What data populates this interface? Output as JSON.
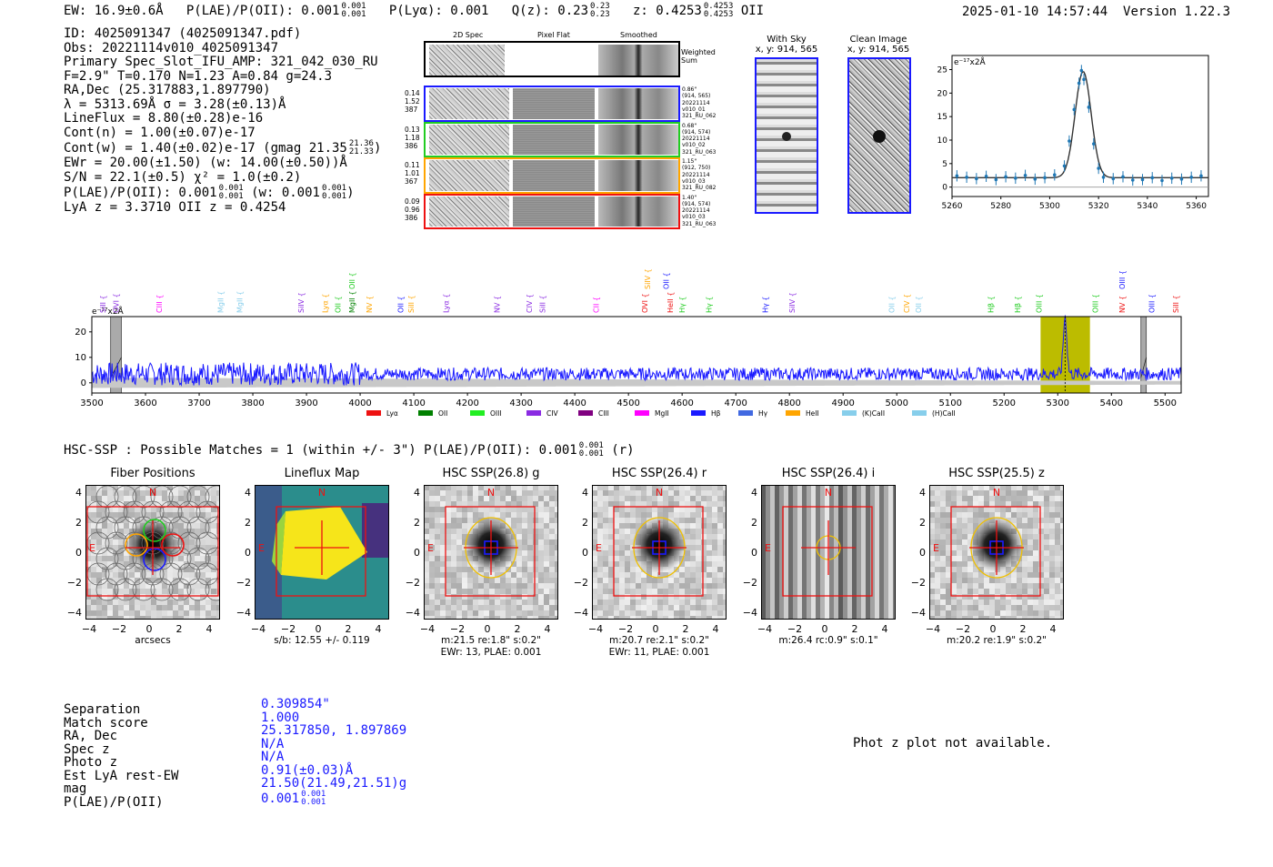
{
  "header": {
    "ew": "EW: 16.9±0.6Å",
    "plae": "P(LAE)/P(OII): 0.001",
    "plae_sup": "0.001",
    "plae_sub": "0.001",
    "plya": "P(Lyα): 0.001",
    "qz": "Q(z): 0.23",
    "qz_sup": "0.23",
    "qz_sub": "0.23",
    "z": "z: 0.4253",
    "z_sup": "0.4253",
    "z_sub": "0.4253",
    "line": "OII",
    "datetime": "2025-01-10 14:57:44",
    "version": "Version 1.22.3"
  },
  "info": {
    "id": "ID: 4025091347 (4025091347.pdf)",
    "obs": "Obs: 20221114v010_4025091347",
    "primary": "Primary Spec_Slot_IFU_AMP: 321_042_030_RU",
    "fwhm": "F=2.9\"  T=0.170  N=1.23  A=0.84  g=24.3",
    "radec": "RA,Dec (25.317883,1.897790)",
    "lambda": "λ = 5313.69Å  σ = 3.28(±0.13)Å",
    "lineflux": "LineFlux = 8.80(±0.28)e-16",
    "contn": "Cont(n) = 1.00(±0.07)e-17",
    "contw": "Cont(w) = 1.40(±0.02)e-17 (gmag 21.35",
    "contw_sup": "21.36",
    "contw_sub": "21.33",
    "contw_end": ")",
    "ewr": "EWr = 20.00(±1.50) (w: 14.00(±0.50))Å",
    "sn": "S/N = 22.1(±0.5)  χ² = 1.0(±0.2)",
    "plae": "P(LAE)/P(OII): 0.001",
    "plae_sup": "0.001",
    "plae_sub": "0.001",
    "plae_w": "(w: 0.001",
    "plae_w_sup": "0.001",
    "plae_w_sub": "0.001",
    "plae_w_end": ")",
    "lyaz": "LyA z = 3.3710  OII z = 0.4254"
  },
  "cutouts": {
    "col_titles": [
      "2D Spec",
      "Pixel Flat",
      "Smoothed"
    ],
    "weighted_label": "Weighted Sum",
    "rows": [
      {
        "left": [
          "0.14",
          "1.52",
          "387"
        ],
        "right": [
          "0.86\"",
          "(914, 565)",
          "20221114",
          "v010_01",
          "321_RU_062"
        ],
        "color": "#1a1aff"
      },
      {
        "left": [
          "0.13",
          "1.18",
          "386"
        ],
        "right": [
          "0.68\"",
          "(914, 574)",
          "20221114",
          "v010_02",
          "321_RU_063"
        ],
        "color": "#22cc22"
      },
      {
        "left": [
          "0.11",
          "1.01",
          "367"
        ],
        "right": [
          "1.15\"",
          "(912, 750)",
          "20221114",
          "v010_03",
          "321_RU_082"
        ],
        "color": "#ffa500"
      },
      {
        "left": [
          "0.09",
          "0.96",
          "386"
        ],
        "right": [
          "1.40\"",
          "(914, 574)",
          "20221114",
          "v010_03",
          "321_RU_063"
        ],
        "color": "#ee1111"
      }
    ]
  },
  "sky": {
    "with_sky": "With Sky",
    "with_sky_xy": "x, y: 914, 565",
    "clean": "Clean Image",
    "clean_xy": "x, y: 914, 565"
  },
  "zoom_chart_data": {
    "type": "line",
    "title": "",
    "ylabel_unit": "e⁻¹⁷x2Å",
    "x": [
      5262,
      5266,
      5270,
      5274,
      5278,
      5282,
      5286,
      5290,
      5294,
      5298,
      5302,
      5306,
      5308,
      5310,
      5312,
      5313,
      5314,
      5316,
      5318,
      5320,
      5322,
      5326,
      5330,
      5334,
      5338,
      5342,
      5346,
      5350,
      5354,
      5358,
      5362
    ],
    "y": [
      2.4,
      2.1,
      1.8,
      2.3,
      1.6,
      2.2,
      1.9,
      2.5,
      1.7,
      2.0,
      2.6,
      4.5,
      9.8,
      16.5,
      22.1,
      24.8,
      22.9,
      17.0,
      9.2,
      4.0,
      2.1,
      1.8,
      2.2,
      1.5,
      1.6,
      2.0,
      1.4,
      1.9,
      1.7,
      2.1,
      2.4
    ],
    "xlim": [
      5260,
      5365
    ],
    "ylim": [
      -2,
      28
    ],
    "xticks": [
      5260,
      5280,
      5300,
      5320,
      5340,
      5360
    ],
    "yticks": [
      0,
      5,
      10,
      15,
      20,
      25
    ]
  },
  "chart_data": {
    "type": "line",
    "ylabel_unit": "e⁻¹⁷x2Å",
    "xlim": [
      3500,
      5530
    ],
    "ylim": [
      -4,
      26
    ],
    "xticks": [
      3500,
      3600,
      3700,
      3800,
      3900,
      4000,
      4100,
      4200,
      4300,
      4400,
      4500,
      4600,
      4700,
      4800,
      4900,
      5000,
      5100,
      5200,
      5300,
      5400,
      5500
    ],
    "yticks": [
      0,
      10,
      20
    ],
    "peak": {
      "x": 5313.69,
      "y": 26
    },
    "highlight_range": [
      5268,
      5360
    ],
    "gray_bands": [
      [
        3535,
        3555
      ],
      [
        5455,
        5465
      ]
    ],
    "line_labels": [
      {
        "x": 3520,
        "label": "SiII",
        "color": "#8a2be2"
      },
      {
        "x": 3545,
        "label": "OVI",
        "color": "#8a2be2"
      },
      {
        "x": 3625,
        "label": "CIII",
        "color": "#ff00ff"
      },
      {
        "x": 3740,
        "label": "MgII",
        "color": "#87ceeb"
      },
      {
        "x": 3775,
        "label": "MgII",
        "color": "#87ceeb"
      },
      {
        "x": 3890,
        "label": "SiIV",
        "color": "#8a2be2"
      },
      {
        "x": 3935,
        "label": "Lyα",
        "color": "#ffa500"
      },
      {
        "x": 3958,
        "label": "OII",
        "color": "#22cc22"
      },
      {
        "x": 3985,
        "label": "MgII",
        "color": "#008000"
      },
      {
        "x": 4017,
        "label": "NV",
        "color": "#ffa500"
      },
      {
        "x": 4075,
        "label": "OII",
        "color": "#1a1aff"
      },
      {
        "x": 4095,
        "label": "SiII",
        "color": "#ffa500"
      },
      {
        "x": 4160,
        "label": "Lyα",
        "color": "#8a2be2"
      },
      {
        "x": 4255,
        "label": "NV",
        "color": "#8a2be2"
      },
      {
        "x": 4315,
        "label": "CIV",
        "color": "#8a2be2"
      },
      {
        "x": 4340,
        "label": "SiII",
        "color": "#8a2be2"
      },
      {
        "x": 4440,
        "label": "CII",
        "color": "#ff00ff"
      },
      {
        "x": 4530,
        "label": "OVI",
        "color": "#ee1111"
      },
      {
        "x": 4578,
        "label": "HeII",
        "color": "#ee1111"
      },
      {
        "x": 4600,
        "label": "Hγ",
        "color": "#22cc22"
      },
      {
        "x": 4650,
        "label": "Hγ",
        "color": "#22cc22"
      },
      {
        "x": 4755,
        "label": "Hγ",
        "color": "#1a1aff"
      },
      {
        "x": 4805,
        "label": "SiIV",
        "color": "#8a2be2"
      },
      {
        "x": 4990,
        "label": "OII",
        "color": "#87ceeb"
      },
      {
        "x": 5018,
        "label": "CIV",
        "color": "#ffa500"
      },
      {
        "x": 5040,
        "label": "OII",
        "color": "#87ceeb"
      },
      {
        "x": 5175,
        "label": "Hβ",
        "color": "#22cc22"
      },
      {
        "x": 5225,
        "label": "Hβ",
        "color": "#22cc22"
      },
      {
        "x": 5265,
        "label": "OIII",
        "color": "#22cc22"
      },
      {
        "x": 5370,
        "label": "OIII",
        "color": "#22cc22"
      },
      {
        "x": 5420,
        "label": "NV",
        "color": "#ee1111"
      },
      {
        "x": 5475,
        "label": "OIII",
        "color": "#1a1aff"
      },
      {
        "x": 5520,
        "label": "SiII",
        "color": "#ee1111"
      }
    ],
    "upper_labels": [
      {
        "x": 3985,
        "label": "OII",
        "color": "#22cc22"
      },
      {
        "x": 4535,
        "label": "SiIV",
        "color": "#ffa500"
      },
      {
        "x": 4570,
        "label": "OII",
        "color": "#1a1aff"
      },
      {
        "x": 5420,
        "label": "OIII",
        "color": "#1a1aff"
      }
    ],
    "legend": [
      {
        "label": "Lyα",
        "color": "#ee1111"
      },
      {
        "label": "OII",
        "color": "#008000"
      },
      {
        "label": "OIII",
        "color": "#22ee22"
      },
      {
        "label": "CIV",
        "color": "#8a2be2"
      },
      {
        "label": "CIII",
        "color": "#800080"
      },
      {
        "label": "MgII",
        "color": "#ff00ff"
      },
      {
        "label": "Hβ",
        "color": "#1a1aff"
      },
      {
        "label": "Hγ",
        "color": "#4169e1"
      },
      {
        "label": "HeII",
        "color": "#ffa500"
      },
      {
        "label": "(K)CaII",
        "color": "#87ceeb"
      },
      {
        "label": "(H)CaII",
        "color": "#87ceeb"
      }
    ]
  },
  "hsc": {
    "summary": "HSC-SSP : Possible Matches = 1 (within +/- 3\")  P(LAE)/P(OII): 0.001",
    "summary_sup": "0.001",
    "summary_sub": "0.001",
    "summary_end": "(r)",
    "panels": [
      {
        "title": "Fiber Positions",
        "caption1": "arcsecs",
        "caption2": "",
        "kind": "fiber"
      },
      {
        "title": "Lineflux Map",
        "caption1": "s/b: 12.55 +/- 0.119",
        "caption2": "",
        "kind": "lineflux"
      },
      {
        "title": "HSC SSP(26.8) g",
        "caption1": "m:21.5  re:1.8\"  s:0.2\"",
        "caption2": "EWr: 13, PLAE: 0.001",
        "kind": "blob"
      },
      {
        "title": "HSC SSP(26.4) r",
        "caption1": "m:20.7  re:2.1\"  s:0.2\"",
        "caption2": "EWr: 11, PLAE: 0.001",
        "kind": "blob"
      },
      {
        "title": "HSC SSP(26.4) i",
        "caption1": "m:26.4  rc:0.9\"  s:0.1\"",
        "caption2": "",
        "kind": "stripes"
      },
      {
        "title": "HSC SSP(25.5) z",
        "caption1": "m:20.2  re:1.9\"  s:0.2\"",
        "caption2": "",
        "kind": "blob"
      }
    ],
    "ticks": [
      "4",
      "2",
      "0",
      "−2",
      "−4"
    ],
    "xticks": [
      "−4",
      "−2",
      "0",
      "2",
      "4"
    ],
    "n_label": "N",
    "e_label": "E"
  },
  "match_table": {
    "labels": [
      "Separation",
      "Match score",
      "RA, Dec",
      "Spec z",
      "Photo z",
      "Est LyA rest-EW",
      "mag",
      "P(LAE)/P(OII)"
    ],
    "values": [
      "0.309854\"",
      "1.000",
      "25.317850, 1.897869",
      "N/A",
      "N/A",
      "0.91(±0.03)Å",
      "21.50(21.49,21.51)g",
      "0.001"
    ],
    "plae_sup": "0.001",
    "plae_sub": "0.001"
  },
  "phot_z": "Phot z plot not available."
}
